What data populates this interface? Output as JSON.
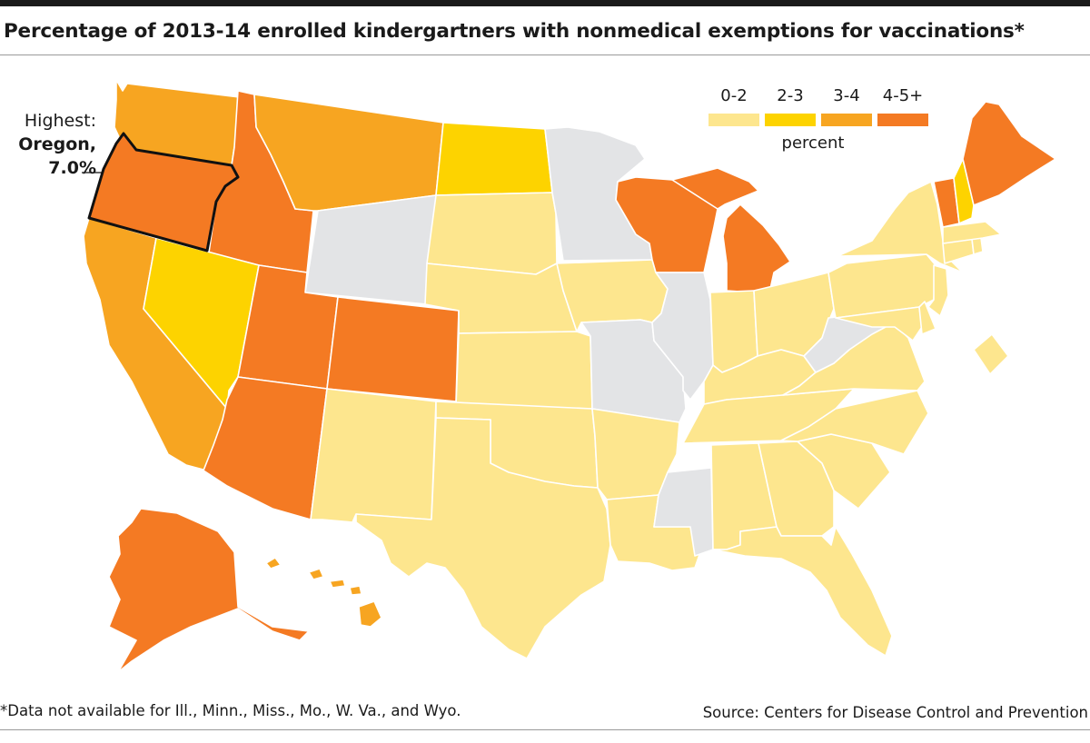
{
  "title": "Percentage of 2013-14 enrolled kindergartners with nonmedical exemptions for vaccinations*",
  "legend": {
    "bins": [
      {
        "label": "0-2",
        "color": "#fde68e"
      },
      {
        "label": "2-3",
        "color": "#fdd300"
      },
      {
        "label": "3-4",
        "color": "#f7a521"
      },
      {
        "label": "4-5+",
        "color": "#f47a23"
      }
    ],
    "unit": "percent"
  },
  "nodata_color": "#e3e4e6",
  "callout": {
    "line1": "Highest:",
    "state": "Oregon,",
    "value": "7.0%"
  },
  "footnote": "*Data not available for Ill., Minn., Miss., Mo., W. Va., and Wyo.",
  "source": "Source: Centers for Disease Control and Prevention",
  "states": [
    {
      "name": "Washington",
      "bin": "3-4"
    },
    {
      "name": "Oregon",
      "bin": "4-5+"
    },
    {
      "name": "California",
      "bin": "3-4"
    },
    {
      "name": "Idaho",
      "bin": "4-5+"
    },
    {
      "name": "Nevada",
      "bin": "2-3"
    },
    {
      "name": "Montana",
      "bin": "3-4"
    },
    {
      "name": "Wyoming",
      "bin": "no data"
    },
    {
      "name": "Utah",
      "bin": "4-5+"
    },
    {
      "name": "Colorado",
      "bin": "4-5+"
    },
    {
      "name": "Arizona",
      "bin": "4-5+"
    },
    {
      "name": "New Mexico",
      "bin": "0-2"
    },
    {
      "name": "North Dakota",
      "bin": "2-3"
    },
    {
      "name": "South Dakota",
      "bin": "0-2"
    },
    {
      "name": "Nebraska",
      "bin": "0-2"
    },
    {
      "name": "Kansas",
      "bin": "0-2"
    },
    {
      "name": "Oklahoma",
      "bin": "0-2"
    },
    {
      "name": "Texas",
      "bin": "0-2"
    },
    {
      "name": "Minnesota",
      "bin": "no data"
    },
    {
      "name": "Iowa",
      "bin": "0-2"
    },
    {
      "name": "Missouri",
      "bin": "no data"
    },
    {
      "name": "Arkansas",
      "bin": "0-2"
    },
    {
      "name": "Louisiana",
      "bin": "0-2"
    },
    {
      "name": "Wisconsin",
      "bin": "4-5+"
    },
    {
      "name": "Illinois",
      "bin": "no data"
    },
    {
      "name": "Mississippi",
      "bin": "no data"
    },
    {
      "name": "Michigan",
      "bin": "4-5+"
    },
    {
      "name": "Indiana",
      "bin": "0-2"
    },
    {
      "name": "Ohio",
      "bin": "0-2"
    },
    {
      "name": "Kentucky",
      "bin": "0-2"
    },
    {
      "name": "Tennessee",
      "bin": "0-2"
    },
    {
      "name": "Alabama",
      "bin": "0-2"
    },
    {
      "name": "Georgia",
      "bin": "0-2"
    },
    {
      "name": "Florida",
      "bin": "0-2"
    },
    {
      "name": "South Carolina",
      "bin": "0-2"
    },
    {
      "name": "North Carolina",
      "bin": "0-2"
    },
    {
      "name": "Virginia",
      "bin": "0-2"
    },
    {
      "name": "West Virginia",
      "bin": "no data"
    },
    {
      "name": "Pennsylvania",
      "bin": "0-2"
    },
    {
      "name": "New York",
      "bin": "0-2"
    },
    {
      "name": "Maryland",
      "bin": "0-2"
    },
    {
      "name": "Delaware",
      "bin": "0-2"
    },
    {
      "name": "New Jersey",
      "bin": "0-2"
    },
    {
      "name": "Connecticut",
      "bin": "0-2"
    },
    {
      "name": "Rhode Island",
      "bin": "0-2"
    },
    {
      "name": "Massachusetts",
      "bin": "0-2"
    },
    {
      "name": "Vermont",
      "bin": "4-5+"
    },
    {
      "name": "New Hampshire",
      "bin": "2-3"
    },
    {
      "name": "Maine",
      "bin": "4-5+"
    },
    {
      "name": "District of Columbia",
      "bin": "0-2"
    },
    {
      "name": "Alaska",
      "bin": "4-5+"
    },
    {
      "name": "Hawaii",
      "bin": "3-4"
    }
  ]
}
